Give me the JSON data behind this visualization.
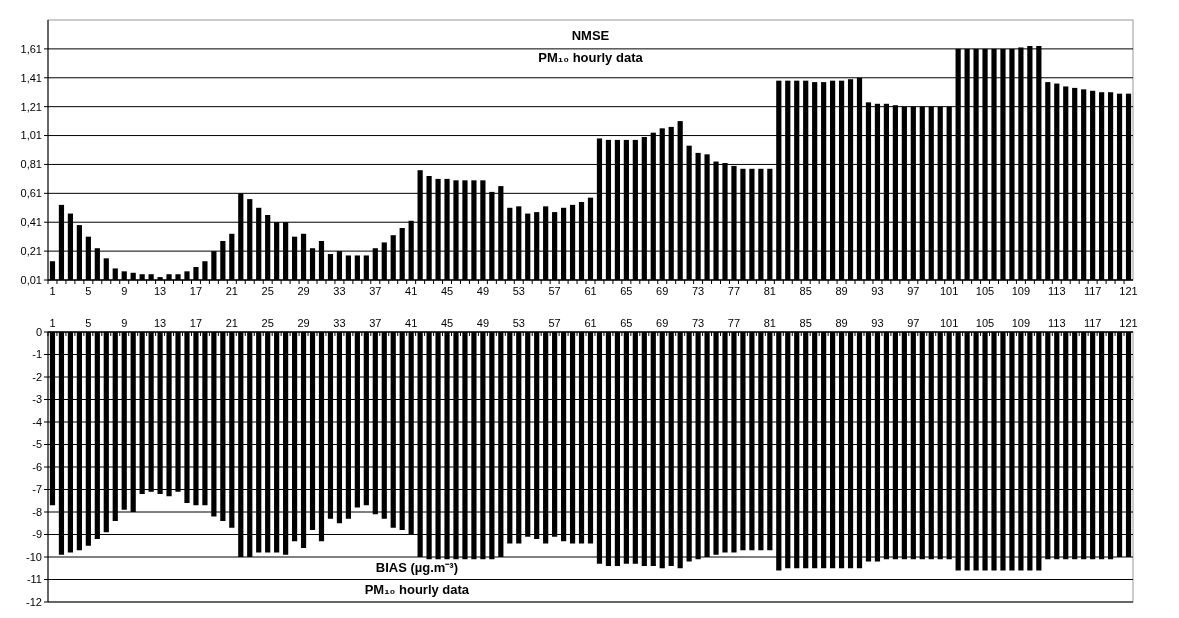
{
  "chart_data": [
    {
      "type": "bar",
      "title": "NMSE",
      "subtitle": "PM₁₀ hourly data",
      "categories": [
        "1",
        null,
        null,
        null,
        "5",
        null,
        null,
        null,
        "9",
        null,
        null,
        null,
        "13",
        null,
        null,
        null,
        "17",
        null,
        null,
        null,
        "21",
        null,
        null,
        null,
        "25",
        null,
        null,
        null,
        "29",
        null,
        null,
        null,
        "33",
        null,
        null,
        null,
        "37",
        null,
        null,
        null,
        "41",
        null,
        null,
        null,
        "45",
        null,
        null,
        null,
        "49",
        null,
        null,
        null,
        "53",
        null,
        null,
        null,
        "57",
        null,
        null,
        null,
        "61",
        null,
        null,
        null,
        "65",
        null,
        null,
        null,
        "69",
        null,
        null,
        null,
        "73",
        null,
        null,
        null,
        "77",
        null,
        null,
        null,
        "81",
        null,
        null,
        null,
        "85",
        null,
        null,
        null,
        "89",
        null,
        null,
        null,
        "93",
        null,
        null,
        null,
        "97",
        null,
        null,
        null,
        "101",
        null,
        null,
        null,
        "105",
        null,
        null,
        null,
        "109",
        null,
        null,
        null,
        "113",
        null,
        null,
        null,
        "117",
        null,
        null,
        null,
        "121"
      ],
      "values": [
        0.14,
        0.53,
        0.47,
        0.39,
        0.31,
        0.23,
        0.16,
        0.09,
        0.07,
        0.06,
        0.05,
        0.05,
        0.03,
        0.05,
        0.05,
        0.07,
        0.1,
        0.14,
        0.21,
        0.28,
        0.33,
        0.61,
        0.57,
        0.51,
        0.46,
        0.41,
        0.41,
        0.31,
        0.33,
        0.23,
        0.28,
        0.19,
        0.21,
        0.18,
        0.18,
        0.18,
        0.23,
        0.27,
        0.32,
        0.37,
        0.42,
        0.77,
        0.73,
        0.71,
        0.71,
        0.7,
        0.7,
        0.7,
        0.7,
        0.62,
        0.66,
        0.51,
        0.52,
        0.47,
        0.48,
        0.52,
        0.48,
        0.51,
        0.53,
        0.55,
        0.58,
        0.99,
        0.98,
        0.98,
        0.98,
        0.98,
        1.0,
        1.03,
        1.06,
        1.07,
        1.11,
        0.94,
        0.89,
        0.88,
        0.83,
        0.82,
        0.8,
        0.78,
        0.78,
        0.78,
        0.78,
        1.39,
        1.39,
        1.39,
        1.39,
        1.38,
        1.38,
        1.39,
        1.39,
        1.4,
        1.41,
        1.24,
        1.23,
        1.23,
        1.22,
        1.21,
        1.21,
        1.21,
        1.21,
        1.21,
        1.21,
        1.61,
        1.61,
        1.61,
        1.61,
        1.61,
        1.61,
        1.61,
        1.62,
        1.63,
        1.63,
        1.38,
        1.37,
        1.35,
        1.34,
        1.33,
        1.32,
        1.31,
        1.31,
        1.3,
        1.3
      ],
      "color": "#000000",
      "ylim": [
        0.01,
        1.81
      ],
      "yticks": [
        {
          "value": 0.01,
          "label": "0,01"
        },
        {
          "value": 0.21,
          "label": "0,21"
        },
        {
          "value": 0.41,
          "label": "0,41"
        },
        {
          "value": 0.61,
          "label": "0,61"
        },
        {
          "value": 0.81,
          "label": "0,81"
        },
        {
          "value": 1.01,
          "label": "1,01"
        },
        {
          "value": 1.21,
          "label": "1,21"
        },
        {
          "value": 1.41,
          "label": "1,41"
        },
        {
          "value": 1.61,
          "label": "1,61"
        }
      ],
      "grid": "y"
    },
    {
      "type": "bar",
      "title": "BIAS (µg.m⁻³)",
      "subtitle": "PM₁₀ hourly data",
      "categories": [
        "1",
        null,
        null,
        null,
        "5",
        null,
        null,
        null,
        "9",
        null,
        null,
        null,
        "13",
        null,
        null,
        null,
        "17",
        null,
        null,
        null,
        "21",
        null,
        null,
        null,
        "25",
        null,
        null,
        null,
        "29",
        null,
        null,
        null,
        "33",
        null,
        null,
        null,
        "37",
        null,
        null,
        null,
        "41",
        null,
        null,
        null,
        "45",
        null,
        null,
        null,
        "49",
        null,
        null,
        null,
        "53",
        null,
        null,
        null,
        "57",
        null,
        null,
        null,
        "61",
        null,
        null,
        null,
        "65",
        null,
        null,
        null,
        "69",
        null,
        null,
        null,
        "73",
        null,
        null,
        null,
        "77",
        null,
        null,
        null,
        "81",
        null,
        null,
        null,
        "85",
        null,
        null,
        null,
        "89",
        null,
        null,
        null,
        "93",
        null,
        null,
        null,
        "97",
        null,
        null,
        null,
        "101",
        null,
        null,
        null,
        "105",
        null,
        null,
        null,
        "109",
        null,
        null,
        null,
        "113",
        null,
        null,
        null,
        "117",
        null,
        null,
        null,
        "121"
      ],
      "values": [
        -7.7,
        -9.9,
        -9.8,
        -9.7,
        -9.5,
        -9.2,
        -8.9,
        -8.4,
        -7.9,
        -8.0,
        -7.2,
        -7.1,
        -7.2,
        -7.3,
        -7.1,
        -7.6,
        -7.7,
        -7.7,
        -8.2,
        -8.4,
        -8.7,
        -10.0,
        -10.0,
        -9.8,
        -9.8,
        -9.8,
        -9.9,
        -9.3,
        -9.6,
        -8.8,
        -9.3,
        -8.3,
        -8.5,
        -8.3,
        -7.8,
        -7.7,
        -8.1,
        -8.3,
        -8.7,
        -8.8,
        -9.0,
        -10.0,
        -10.1,
        -10.1,
        -10.1,
        -10.1,
        -10.1,
        -10.1,
        -10.1,
        -10.1,
        -10.0,
        -9.4,
        -9.4,
        -9.1,
        -9.2,
        -9.4,
        -9.1,
        -9.3,
        -9.4,
        -9.4,
        -9.4,
        -10.3,
        -10.4,
        -10.4,
        -10.3,
        -10.3,
        -10.4,
        -10.4,
        -10.5,
        -10.4,
        -10.5,
        -10.2,
        -10.1,
        -10.0,
        -9.9,
        -9.8,
        -9.8,
        -9.7,
        -9.7,
        -9.7,
        -9.7,
        -10.6,
        -10.5,
        -10.5,
        -10.5,
        -10.5,
        -10.5,
        -10.5,
        -10.5,
        -10.5,
        -10.5,
        -10.2,
        -10.2,
        -10.1,
        -10.1,
        -10.1,
        -10.1,
        -10.1,
        -10.1,
        -10.1,
        -10.1,
        -10.6,
        -10.6,
        -10.6,
        -10.6,
        -10.6,
        -10.6,
        -10.6,
        -10.6,
        -10.6,
        -10.6,
        -10.1,
        -10.1,
        -10.1,
        -10.1,
        -10.1,
        -10.1,
        -10.1,
        -10.1,
        -10.0,
        -10.0
      ],
      "color": "#000000",
      "ylim": [
        -12,
        0
      ],
      "yticks": [
        0,
        -1,
        -2,
        -3,
        -4,
        -5,
        -6,
        -7,
        -8,
        -9,
        -10,
        -11,
        -12
      ],
      "grid": "y"
    }
  ]
}
